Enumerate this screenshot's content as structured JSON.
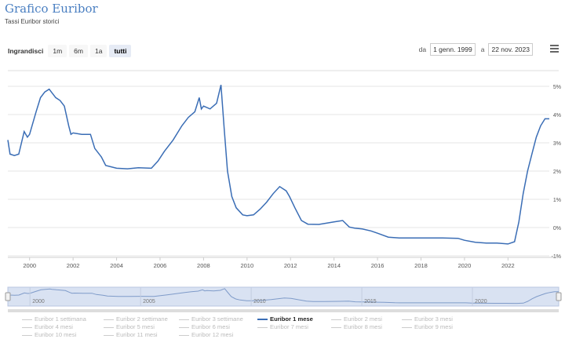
{
  "header": {
    "title": "Grafico Euribor",
    "subtitle": "Tassi Euribor storici"
  },
  "zoom": {
    "label": "Ingrandisci",
    "buttons": [
      "1m",
      "6m",
      "1a",
      "tutti"
    ],
    "selected": "tutti"
  },
  "range": {
    "from_label": "da",
    "from_value": "1 genn. 1999",
    "to_label": "a",
    "to_value": "22 nov. 2023"
  },
  "colors": {
    "series": "#3a6db5",
    "navigator_fill": "#d9e2f2"
  },
  "chart_data": {
    "type": "line",
    "title": "Grafico Euribor",
    "subtitle": "Tassi Euribor storici",
    "xlim": [
      1999.0,
      2023.9
    ],
    "ylim": [
      -1,
      5
    ],
    "y_ticks": [
      "-1%",
      "0%",
      "1%",
      "2%",
      "3%",
      "4%",
      "5%"
    ],
    "x_ticks": [
      "2000",
      "2002",
      "2004",
      "2006",
      "2008",
      "2010",
      "2012",
      "2014",
      "2016",
      "2018",
      "2020",
      "2022"
    ],
    "navigator_ticks": [
      "2000",
      "2005",
      "2010",
      "2015",
      "2020"
    ],
    "grid": true,
    "series": [
      {
        "name": "Euribor 1 mese",
        "x": [
          1999.0,
          1999.1,
          1999.3,
          1999.5,
          1999.75,
          1999.9,
          2000.0,
          2000.3,
          2000.5,
          2000.7,
          2000.9,
          2001.0,
          2001.2,
          2001.4,
          2001.6,
          2001.8,
          2001.9,
          2002.0,
          2002.4,
          2002.8,
          2003.0,
          2003.3,
          2003.5,
          2004.0,
          2004.5,
          2005.0,
          2005.6,
          2005.9,
          2006.2,
          2006.6,
          2007.0,
          2007.3,
          2007.6,
          2007.8,
          2007.9,
          2008.0,
          2008.3,
          2008.6,
          2008.8,
          2008.95,
          2009.1,
          2009.3,
          2009.5,
          2009.8,
          2010.0,
          2010.3,
          2010.6,
          2010.9,
          2011.2,
          2011.5,
          2011.8,
          2011.95,
          2012.2,
          2012.5,
          2012.8,
          2013.3,
          2014.0,
          2014.4,
          2014.7,
          2014.95,
          2015.3,
          2015.7,
          2016.0,
          2016.5,
          2017.0,
          2018.0,
          2019.0,
          2019.7,
          2020.0,
          2020.5,
          2021.0,
          2021.5,
          2022.0,
          2022.3,
          2022.5,
          2022.7,
          2022.9,
          2023.1,
          2023.3,
          2023.5,
          2023.7,
          2023.9
        ],
        "y": [
          3.1,
          2.6,
          2.55,
          2.6,
          3.4,
          3.2,
          3.3,
          4.1,
          4.6,
          4.8,
          4.9,
          4.8,
          4.6,
          4.5,
          4.3,
          3.6,
          3.3,
          3.35,
          3.3,
          3.3,
          2.8,
          2.5,
          2.2,
          2.1,
          2.08,
          2.12,
          2.1,
          2.35,
          2.7,
          3.1,
          3.6,
          3.9,
          4.1,
          4.6,
          4.2,
          4.3,
          4.2,
          4.4,
          5.05,
          3.5,
          2.0,
          1.1,
          0.7,
          0.45,
          0.42,
          0.45,
          0.65,
          0.9,
          1.2,
          1.45,
          1.3,
          1.1,
          0.7,
          0.25,
          0.12,
          0.11,
          0.2,
          0.25,
          0.02,
          -0.02,
          -0.05,
          -0.12,
          -0.2,
          -0.34,
          -0.37,
          -0.37,
          -0.37,
          -0.38,
          -0.45,
          -0.52,
          -0.55,
          -0.55,
          -0.58,
          -0.5,
          0.2,
          1.2,
          2.0,
          2.6,
          3.2,
          3.6,
          3.85,
          3.85
        ]
      }
    ],
    "legend": {
      "items": [
        "Euribor 1 settimana",
        "Euribor 2 settimane",
        "Euribor 3 settimane",
        "Euribor 1 mese",
        "Euribor 2 mesi",
        "Euribor 3 mesi",
        "Euribor 4 mesi",
        "Euribor 5 mesi",
        "Euribor 6 mesi",
        "Euribor 7 mesi",
        "Euribor 8 mesi",
        "Euribor 9 mesi",
        "Euribor 10 mesi",
        "Euribor 11 mesi",
        "Euribor 12 mesi"
      ],
      "active": "Euribor 1 mese",
      "placement": "bottom"
    }
  }
}
